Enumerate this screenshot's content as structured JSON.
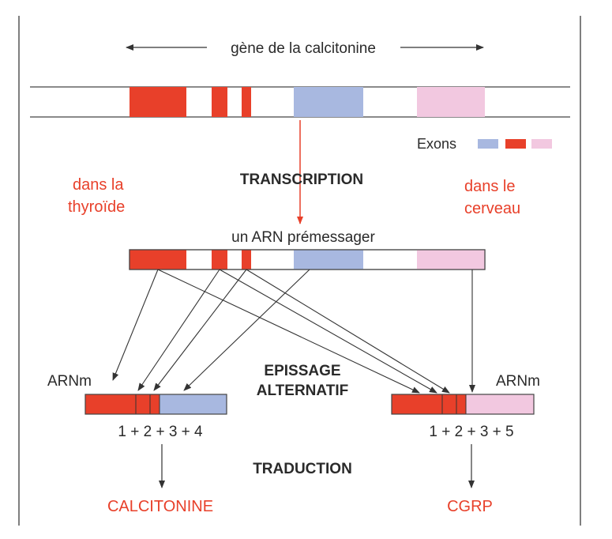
{
  "title": "gène de la calcitonine",
  "legend": {
    "label": "Exons",
    "colors": [
      "#a8b8e0",
      "#e8402a",
      "#f2c8e0"
    ]
  },
  "steps": {
    "transcription": "TRANSCRIPTION",
    "splicing_line1": "EPISSAGE",
    "splicing_line2": "ALTERNATIF",
    "translation": "TRADUCTION"
  },
  "tissues": {
    "thyroid_line1": "dans la",
    "thyroid_line2": "thyroïde",
    "brain_line1": "dans le",
    "brain_line2": "cerveau"
  },
  "pre_mrna_label": "un ARN prémessager",
  "mrna_left": {
    "label": "ARNm",
    "exon_formula": "1 + 2 + 3 + 4",
    "product": "CALCITONINE"
  },
  "mrna_right": {
    "label": "ARNm",
    "exon_formula": "1 + 2 + 3 + 5",
    "product": "CGRP"
  },
  "colors": {
    "red_exon": "#e8402a",
    "blue_exon": "#a8b8e0",
    "pink_exon": "#f2c8e0",
    "accent_text": "#e8402a"
  }
}
